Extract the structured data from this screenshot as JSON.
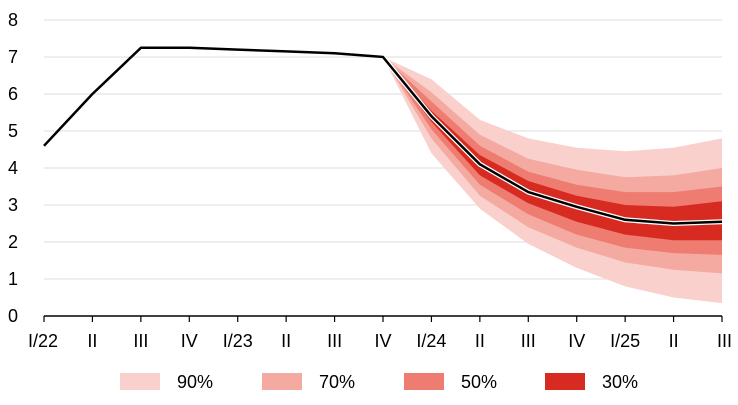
{
  "chart_data": {
    "type": "area",
    "categories": [
      "I/22",
      "II",
      "III",
      "IV",
      "I/23",
      "II",
      "III",
      "IV",
      "I/24",
      "II",
      "III",
      "IV",
      "I/25",
      "II",
      "III"
    ],
    "ylim": [
      0,
      8
    ],
    "yticks": [
      0,
      1,
      2,
      3,
      4,
      5,
      6,
      7,
      8
    ],
    "grid": true,
    "legend_position": "bottom",
    "series": [
      {
        "values": [
          4.6,
          6.0,
          7.25,
          7.25,
          7.2,
          7.15,
          7.1,
          7.0,
          5.4,
          4.1,
          3.35,
          2.95,
          2.6,
          2.5,
          2.55
        ]
      }
    ],
    "fan_start_index": 7,
    "fan_bands": [
      {
        "name": "90%",
        "color": "#f9d0cc",
        "lower": [
          7.0,
          4.4,
          2.9,
          1.95,
          1.3,
          0.8,
          0.5,
          0.35
        ],
        "upper": [
          7.0,
          6.4,
          5.3,
          4.8,
          4.55,
          4.45,
          4.55,
          4.8
        ]
      },
      {
        "name": "70%",
        "color": "#f4a9a1",
        "lower": [
          7.0,
          4.8,
          3.25,
          2.4,
          1.85,
          1.45,
          1.25,
          1.15
        ],
        "upper": [
          7.0,
          6.05,
          4.9,
          4.25,
          3.95,
          3.75,
          3.8,
          4.0
        ]
      },
      {
        "name": "50%",
        "color": "#ee7c70",
        "lower": [
          7.0,
          5.05,
          3.55,
          2.75,
          2.2,
          1.85,
          1.7,
          1.65
        ],
        "upper": [
          7.0,
          5.8,
          4.6,
          3.9,
          3.55,
          3.35,
          3.35,
          3.5
        ]
      },
      {
        "name": "30%",
        "color": "#d72b21",
        "lower": [
          7.0,
          5.25,
          3.8,
          3.05,
          2.55,
          2.2,
          2.05,
          2.05
        ],
        "upper": [
          7.0,
          5.55,
          4.35,
          3.65,
          3.25,
          3.0,
          2.95,
          3.1
        ]
      }
    ]
  }
}
